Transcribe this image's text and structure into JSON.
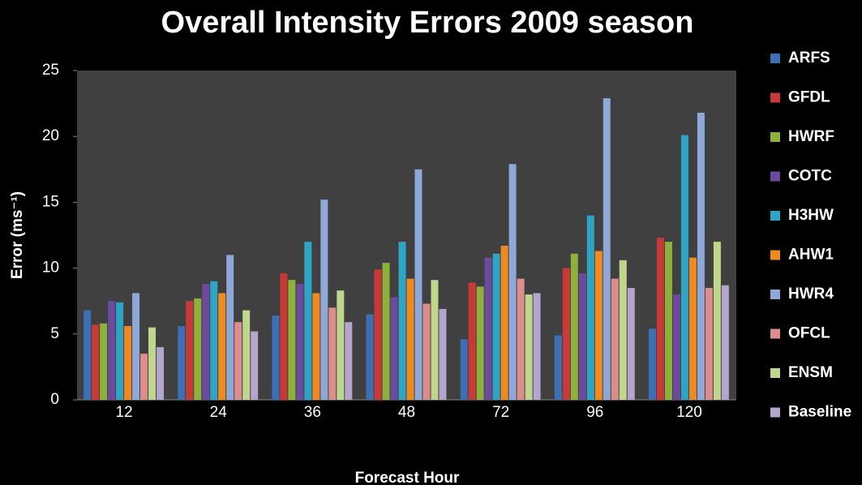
{
  "chart_data": {
    "type": "bar",
    "title": "Overall Intensity Errors 2009 season",
    "xlabel": "Forecast Hour",
    "ylabel": "Error (ms⁻¹)",
    "categories": [
      "12",
      "24",
      "36",
      "48",
      "72",
      "96",
      "120"
    ],
    "series": [
      {
        "name": "ARFS",
        "color": "#3d6fb5",
        "values": [
          6.8,
          5.6,
          6.4,
          6.5,
          4.6,
          4.9,
          5.4
        ]
      },
      {
        "name": "GFDL",
        "color": "#c83a37",
        "values": [
          5.7,
          7.5,
          9.6,
          9.9,
          8.9,
          10.0,
          12.3
        ]
      },
      {
        "name": "HWRF",
        "color": "#8db13a",
        "values": [
          5.8,
          7.7,
          9.1,
          10.4,
          8.6,
          11.1,
          12.0
        ]
      },
      {
        "name": "COTC",
        "color": "#6d4b9c",
        "values": [
          7.5,
          8.8,
          8.8,
          7.8,
          10.8,
          9.6,
          8.0
        ]
      },
      {
        "name": "H3HW",
        "color": "#2ea5c4",
        "values": [
          7.4,
          9.0,
          12.0,
          12.0,
          11.1,
          14.0,
          20.1
        ]
      },
      {
        "name": "AHW1",
        "color": "#ee8a1f",
        "values": [
          5.6,
          8.1,
          8.1,
          9.2,
          11.7,
          11.3,
          10.8
        ]
      },
      {
        "name": "HWR4",
        "color": "#8ea8d8",
        "values": [
          8.1,
          11.0,
          15.2,
          17.5,
          17.9,
          22.9,
          21.8
        ]
      },
      {
        "name": "OFCL",
        "color": "#dd8d8b",
        "values": [
          3.5,
          5.9,
          7.0,
          7.3,
          9.2,
          9.2,
          8.5
        ]
      },
      {
        "name": "ENSM",
        "color": "#bfd68c",
        "values": [
          5.5,
          6.8,
          8.3,
          9.1,
          8.0,
          10.6,
          12.0
        ]
      },
      {
        "name": "Baseline",
        "color": "#b4a5cf",
        "values": [
          4.0,
          5.2,
          5.9,
          6.9,
          8.1,
          8.5,
          8.7
        ]
      }
    ],
    "ylim": [
      0,
      25
    ],
    "yticks": [
      0,
      5,
      10,
      15,
      20,
      25
    ],
    "legend": "right"
  }
}
